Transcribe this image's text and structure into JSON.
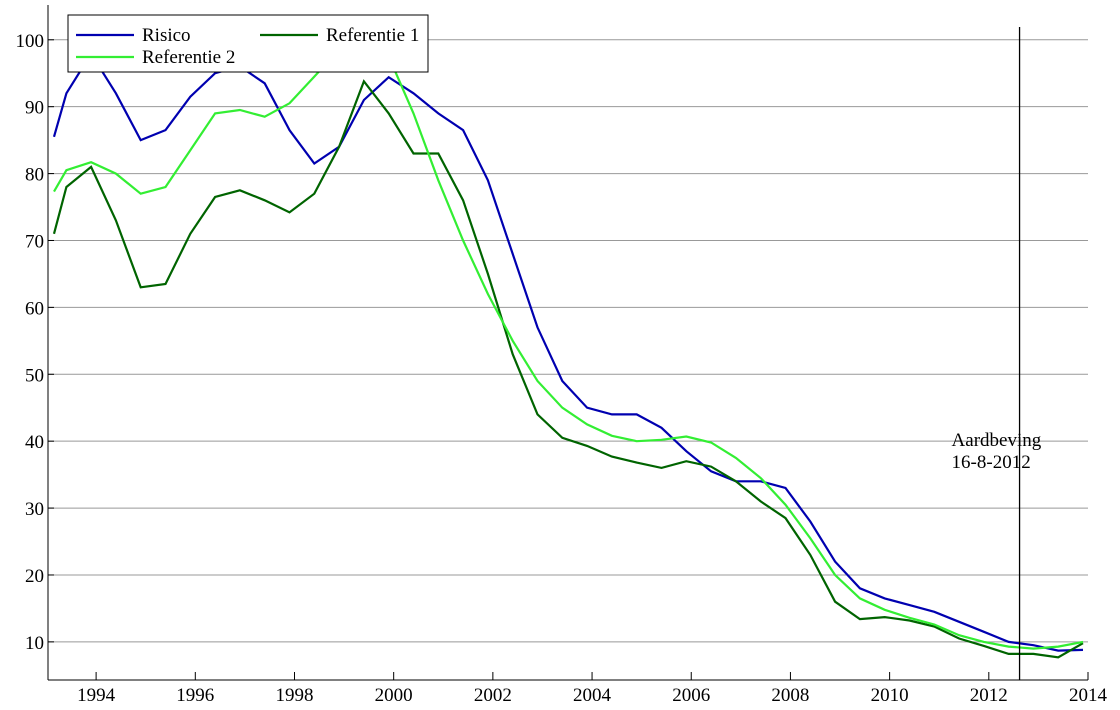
{
  "chart_data": {
    "type": "line",
    "x": [
      1993.15,
      1993.4,
      1993.9,
      1994.4,
      1994.9,
      1995.4,
      1995.9,
      1996.4,
      1996.9,
      1997.4,
      1997.9,
      1998.4,
      1998.9,
      1999.4,
      1999.9,
      2000.4,
      2000.9,
      2001.4,
      2001.9,
      2002.4,
      2002.9,
      2003.4,
      2003.9,
      2004.4,
      2004.9,
      2005.4,
      2005.9,
      2006.4,
      2006.9,
      2007.4,
      2007.9,
      2008.4,
      2008.9,
      2009.4,
      2009.9,
      2010.4,
      2010.9,
      2011.4,
      2011.9,
      2012.4,
      2012.9,
      2013.4,
      2013.9
    ],
    "series": [
      {
        "name": "Risico",
        "color": "#0000b0",
        "values": [
          85.5,
          92,
          97.9,
          92,
          85,
          86.5,
          91.5,
          95,
          96,
          93.5,
          86.5,
          81.5,
          84,
          91,
          94.4,
          92,
          89,
          86.5,
          79,
          68,
          57,
          49,
          45,
          44,
          44,
          42,
          38.5,
          35.5,
          34,
          34,
          33,
          28,
          22,
          18,
          16.5,
          15.5,
          14.5,
          13,
          11.5,
          10,
          9.5,
          8.7,
          8.8
        ]
      },
      {
        "name": "Referentie 1",
        "color": "#006400",
        "values": [
          71,
          78,
          81,
          73,
          63,
          63.5,
          71,
          76.5,
          77.5,
          76,
          74.2,
          77,
          84,
          93.8,
          89,
          83,
          83,
          76,
          65,
          53,
          44,
          40.5,
          39.3,
          37.7,
          36.8,
          36,
          37,
          36.2,
          34,
          31,
          28.5,
          23,
          16,
          13.4,
          13.7,
          13.2,
          12.3,
          10.5,
          9.4,
          8.2,
          8.2,
          7.7,
          9.8
        ]
      },
      {
        "name": "Referentie 2",
        "color": "#33ee33",
        "values": [
          77.3,
          80.5,
          81.7,
          80,
          77,
          78,
          83.5,
          89,
          89.5,
          88.5,
          90.5,
          94.5,
          98.5,
          101.5,
          97.5,
          89,
          79,
          70,
          62,
          55,
          49,
          45,
          42.5,
          40.8,
          40,
          40.2,
          40.7,
          39.8,
          37.5,
          34.5,
          30.5,
          25.5,
          20,
          16.5,
          14.8,
          13.6,
          12.6,
          11,
          10,
          9.3,
          9,
          9.3,
          10
        ]
      }
    ],
    "xlim": [
      1993.03,
      2014
    ],
    "xticks": [
      1994,
      1996,
      1998,
      2000,
      2002,
      2004,
      2006,
      2008,
      2010,
      2012,
      2014
    ],
    "ylim": [
      4.3,
      105.2
    ],
    "yticks": [
      10,
      20,
      30,
      40,
      50,
      60,
      70,
      80,
      90,
      100
    ],
    "grid": true,
    "legend": "top-left",
    "vline": {
      "x": 2012.62,
      "label": [
        "Aardbeving",
        "16-8-2012"
      ]
    }
  }
}
